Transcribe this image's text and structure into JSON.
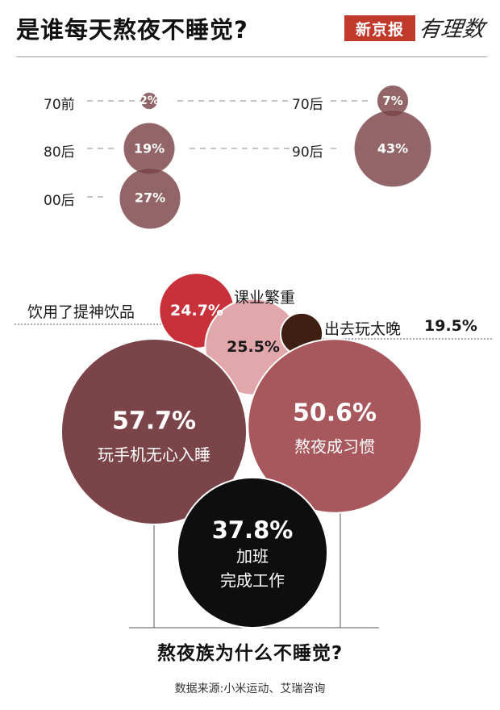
{
  "header": {
    "title": "是谁每天熬夜不睡觉?",
    "brand_name": "新京报",
    "brand_logo": "有理数",
    "brand_color": "#c0392b"
  },
  "chart_data": [
    {
      "type": "bubble",
      "categories": [
        "70前",
        "80后",
        "00后",
        "70后",
        "90后"
      ],
      "values": [
        2,
        19,
        27,
        7,
        43
      ],
      "value_labels": [
        "2%",
        "19%",
        "27%",
        "7%",
        "43%"
      ],
      "color": "#7a4448"
    },
    {
      "type": "bubble",
      "title": "熬夜族为什么不睡觉?",
      "categories": [
        "饮用了提神饮品",
        "课业繁重",
        "出去玩太晚",
        "玩手机无心入睡",
        "熬夜成习惯",
        "加班完成工作"
      ],
      "values": [
        24.7,
        25.5,
        19.5,
        57.7,
        50.6,
        37.8
      ],
      "value_labels": [
        "24.7%",
        "25.5%",
        "19.5%",
        "57.7%",
        "50.6%",
        "37.8%"
      ],
      "category_lines": [
        "",
        "",
        "",
        "",
        "",
        "加班\n完成工作"
      ],
      "colors": [
        "#c8303a",
        "#e1a7ab",
        "#3e1f11",
        "#7a4448",
        "#a8585c",
        "#0e0e0e"
      ]
    }
  ],
  "source": "数据来源:小米运动、艾瑞咨询"
}
